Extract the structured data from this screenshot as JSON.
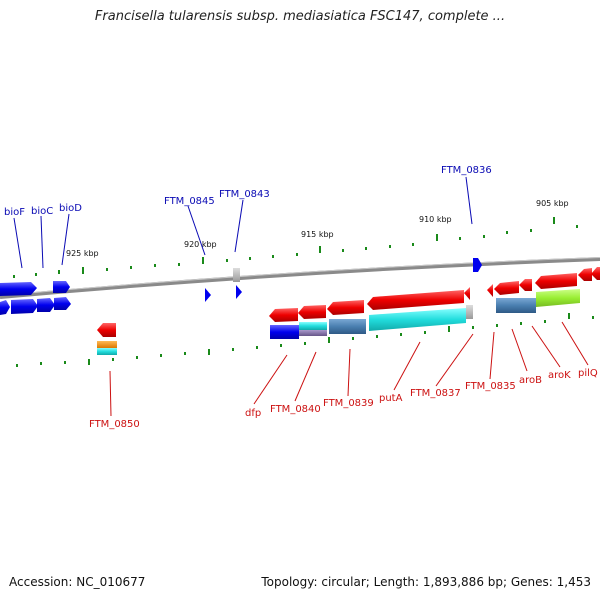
{
  "title": "Francisella tularensis subsp. mediasiatica FSC147, complete ...",
  "footer": {
    "accession": "Accession: NC_010677",
    "summary": "Topology: circular; Length: 1,893,886 bp; Genes: 1,453"
  },
  "kbp_labels": [
    "905 kbp",
    "910 kbp",
    "915 kbp",
    "920 kbp",
    "925 kbp"
  ],
  "gene_labels_top": [
    "bioF",
    "bioC",
    "bioD",
    "FTM_0845",
    "FTM_0843",
    "FTM_0836"
  ],
  "gene_labels_bottom": [
    "FTM_0850",
    "dfp",
    "FTM_0840",
    "FTM_0839",
    "putA",
    "FTM_0837",
    "FTM_0835",
    "aroB",
    "aroK",
    "pilQ"
  ],
  "colors": {
    "forward": "#0000ee",
    "reverse": "#ee0000",
    "backbone": "#888888",
    "tick": "#1a8a1a",
    "label_blue": "#0a0ab4",
    "label_red": "#cc1111",
    "cyan": "#22dddd",
    "steel": "#4a7fb0",
    "lime": "#99ee33",
    "orange": "#ff8c00",
    "grey": "#aaaaaa"
  }
}
